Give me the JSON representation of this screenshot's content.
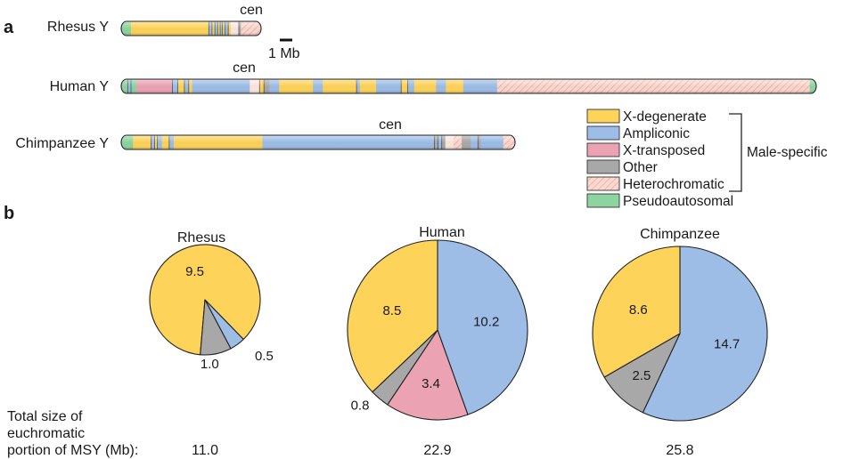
{
  "panel_a_label": "a",
  "panel_b_label": "b",
  "centromere_label": "cen",
  "scale_bar_label": "1 Mb",
  "chromosomes": [
    {
      "name": "Rhesus Y",
      "segments": [
        {
          "c": "pa",
          "l": 2.4
        },
        {
          "c": "xd",
          "l": 19.2
        },
        {
          "c": "am",
          "l": 0.8
        },
        {
          "c": "xd",
          "l": 0.7
        },
        {
          "c": "am",
          "l": 0.7
        },
        {
          "c": "xd",
          "l": 0.6
        },
        {
          "c": "am",
          "l": 0.6
        },
        {
          "c": "xd",
          "l": 0.6
        },
        {
          "c": "am",
          "l": 0.8
        },
        {
          "c": "xd",
          "l": 0.6
        },
        {
          "c": "cen",
          "l": 2.0
        },
        {
          "c": "ot",
          "l": 0.5
        },
        {
          "c": "het",
          "l": 5.0
        }
      ]
    },
    {
      "name": "Human Y",
      "segments": [
        {
          "c": "pa",
          "l": 1.2
        },
        {
          "c": "am",
          "l": 0.6
        },
        {
          "c": "pa",
          "l": 1.0
        },
        {
          "c": "xt",
          "l": 6.6
        },
        {
          "c": "am",
          "l": 1.0
        },
        {
          "c": "xd",
          "l": 1.2
        },
        {
          "c": "am",
          "l": 0.8
        },
        {
          "c": "xd",
          "l": 0.6
        },
        {
          "c": "am",
          "l": 10.6
        },
        {
          "c": "cen",
          "l": 1.8
        },
        {
          "c": "xd",
          "l": 0.8
        },
        {
          "c": "ot",
          "l": 1.0
        },
        {
          "c": "am",
          "l": 1.8
        },
        {
          "c": "xd",
          "l": 6.2
        },
        {
          "c": "am",
          "l": 1.8
        },
        {
          "c": "xd",
          "l": 6.2
        },
        {
          "c": "am",
          "l": 0.6
        },
        {
          "c": "xd",
          "l": 3.0
        },
        {
          "c": "am",
          "l": 4.6
        },
        {
          "c": "xd",
          "l": 1.2
        },
        {
          "c": "am",
          "l": 1.2
        },
        {
          "c": "xd",
          "l": 4.0
        },
        {
          "c": "am",
          "l": 1.8
        },
        {
          "c": "xd",
          "l": 3.2
        },
        {
          "c": "am",
          "l": 6.2
        },
        {
          "c": "het",
          "l": 57.4
        },
        {
          "c": "pa",
          "l": 1.2
        }
      ]
    },
    {
      "name": "Chimpanzee Y",
      "segments": [
        {
          "c": "pa",
          "l": 2.6
        },
        {
          "c": "xd",
          "l": 4.0
        },
        {
          "c": "am",
          "l": 0.8
        },
        {
          "c": "xd",
          "l": 0.6
        },
        {
          "c": "am",
          "l": 1.0
        },
        {
          "c": "xd",
          "l": 1.6
        },
        {
          "c": "am",
          "l": 1.0
        },
        {
          "c": "xd",
          "l": 19.6
        },
        {
          "c": "am",
          "l": 38.0
        },
        {
          "c": "ot",
          "l": 0.8
        },
        {
          "c": "am",
          "l": 0.8
        },
        {
          "c": "ot",
          "l": 0.8
        },
        {
          "c": "cen",
          "l": 1.8
        },
        {
          "c": "het",
          "l": 1.8
        },
        {
          "c": "ot",
          "l": 2.0
        },
        {
          "c": "am",
          "l": 1.6
        },
        {
          "c": "ot",
          "l": 0.6
        },
        {
          "c": "am",
          "l": 5.0
        },
        {
          "c": "het",
          "l": 2.6
        }
      ]
    }
  ],
  "legend": {
    "items": [
      {
        "key": "xd",
        "label": "X-degenerate"
      },
      {
        "key": "am",
        "label": "Ampliconic"
      },
      {
        "key": "xt",
        "label": "X-transposed"
      },
      {
        "key": "ot",
        "label": "Other"
      },
      {
        "key": "het",
        "label": "Heterochromatic"
      },
      {
        "key": "pa",
        "label": "Pseudoautosomal"
      }
    ],
    "bracket_label": "Male-specific"
  },
  "colors": {
    "xd": "#fdd35a",
    "am": "#9dbde6",
    "xt": "#eba2b2",
    "ot": "#a8a8a8",
    "het": "#fbd9d0",
    "het_hatch": "#e9a597",
    "pa": "#8dd4a0",
    "cen": "#fbe7de",
    "outline": "#222222"
  },
  "pies": [
    {
      "title": "Rhesus",
      "total": "11.0",
      "slices": [
        {
          "key": "xd",
          "value": 9.5,
          "label": "9.5"
        },
        {
          "key": "am",
          "value": 0.5,
          "label": "0.5"
        },
        {
          "key": "ot",
          "value": 1.0,
          "label": "1.0"
        }
      ]
    },
    {
      "title": "Human",
      "total": "22.9",
      "slices": [
        {
          "key": "am",
          "value": 10.2,
          "label": "10.2"
        },
        {
          "key": "xt",
          "value": 3.4,
          "label": "3.4"
        },
        {
          "key": "ot",
          "value": 0.8,
          "label": "0.8"
        },
        {
          "key": "xd",
          "value": 8.5,
          "label": "8.5"
        }
      ]
    },
    {
      "title": "Chimpanzee",
      "total": "25.8",
      "slices": [
        {
          "key": "am",
          "value": 14.7,
          "label": "14.7"
        },
        {
          "key": "ot",
          "value": 2.5,
          "label": "2.5"
        },
        {
          "key": "xd",
          "value": 8.6,
          "label": "8.6"
        }
      ]
    }
  ],
  "total_size_label": [
    "Total size of",
    "euchromatic",
    "portion of MSY (Mb):"
  ]
}
